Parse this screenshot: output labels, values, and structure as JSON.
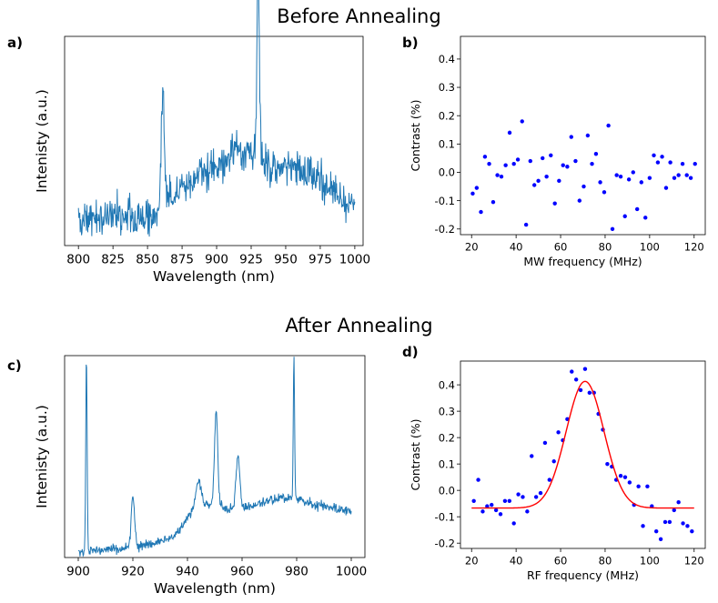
{
  "sections": {
    "top": "Before Annealing",
    "bottom": "After Annealing"
  },
  "panel_letters": {
    "a": "a)",
    "b": "b)",
    "c": "c)",
    "d": "d)"
  },
  "colors": {
    "spectrum": "#1f77b4",
    "points": "#0000ff",
    "fit": "#ff0000"
  },
  "chart_data": [
    {
      "id": "a",
      "type": "line",
      "title": "",
      "xlabel": "Wavelength (nm)",
      "ylabel": "Intenisty (a.u.)",
      "xlim": [
        790,
        1006
      ],
      "ylim": [
        0.0,
        1.0
      ],
      "xticks": [
        800,
        825,
        850,
        875,
        900,
        925,
        950,
        975,
        1000
      ],
      "yticks": [],
      "x_range": [
        800,
        1000
      ],
      "description_points": [
        [
          800,
          0.12
        ],
        [
          830,
          0.15
        ],
        [
          855,
          0.13
        ],
        [
          868,
          0.24
        ],
        [
          878,
          0.27
        ],
        [
          890,
          0.37
        ],
        [
          905,
          0.39
        ],
        [
          915,
          0.45
        ],
        [
          940,
          0.39
        ],
        [
          960,
          0.37
        ],
        [
          985,
          0.27
        ],
        [
          1000,
          0.17
        ]
      ],
      "peaks": [
        [
          861,
          0.54,
          1.2
        ],
        [
          930,
          0.92,
          0.9
        ]
      ]
    },
    {
      "id": "b",
      "type": "scatter",
      "title": "",
      "xlabel": "MW frequency (MHz)",
      "ylabel": "Contrast (%)",
      "xlim": [
        15,
        125
      ],
      "ylim": [
        -0.22,
        0.48
      ],
      "xticks": [
        20,
        40,
        60,
        80,
        100,
        120
      ],
      "yticks": [
        -0.2,
        -0.1,
        0.0,
        0.1,
        0.2,
        0.3,
        0.4
      ],
      "x": [
        20.5,
        22.3,
        24.2,
        26.0,
        27.9,
        29.7,
        31.6,
        33.4,
        35.3,
        37.1,
        39.0,
        40.8,
        42.7,
        44.5,
        46.4,
        48.2,
        50.0,
        51.9,
        53.7,
        55.6,
        57.4,
        59.3,
        61.1,
        63.0,
        64.8,
        66.7,
        68.5,
        70.4,
        72.2,
        74.1,
        75.9,
        77.8,
        79.6,
        81.5,
        83.3,
        85.2,
        87.0,
        88.9,
        90.7,
        92.6,
        94.4,
        96.3,
        98.1,
        100.0,
        101.9,
        103.7,
        105.6,
        107.4,
        109.3,
        111.1,
        113.0,
        114.8,
        116.7,
        118.5,
        120.4
      ],
      "y": [
        -0.075,
        -0.055,
        -0.14,
        0.055,
        0.03,
        -0.105,
        -0.01,
        -0.015,
        0.025,
        0.14,
        0.03,
        0.045,
        0.18,
        -0.185,
        0.04,
        -0.045,
        -0.03,
        0.05,
        -0.015,
        0.06,
        -0.11,
        -0.03,
        0.025,
        0.02,
        0.125,
        0.04,
        -0.1,
        -0.05,
        0.13,
        0.03,
        0.065,
        -0.035,
        -0.07,
        0.165,
        -0.2,
        -0.01,
        -0.015,
        -0.155,
        -0.025,
        0.0,
        -0.13,
        -0.035,
        -0.16,
        -0.02,
        0.06,
        0.035,
        0.055,
        -0.055,
        0.035,
        -0.02,
        -0.01,
        0.03,
        -0.01,
        -0.02,
        0.03
      ]
    },
    {
      "id": "c",
      "type": "line",
      "title": "",
      "xlabel": "Wavelength (nm)",
      "ylabel": "Intenisty (a.u.)",
      "xlim": [
        895,
        1005
      ],
      "ylim": [
        0.0,
        1.0
      ],
      "xticks": [
        900,
        920,
        940,
        960,
        980,
        1000
      ],
      "yticks": [],
      "x_range": [
        900,
        1000
      ],
      "description_points": [
        [
          900,
          0.03
        ],
        [
          912,
          0.04
        ],
        [
          925,
          0.06
        ],
        [
          935,
          0.1
        ],
        [
          940,
          0.2
        ],
        [
          945,
          0.27
        ],
        [
          955,
          0.24
        ],
        [
          965,
          0.26
        ],
        [
          975,
          0.3
        ],
        [
          985,
          0.27
        ],
        [
          1000,
          0.23
        ]
      ],
      "peaks": [
        [
          903,
          0.97,
          0.25
        ],
        [
          920,
          0.25,
          0.6
        ],
        [
          944,
          0.12,
          1.0
        ],
        [
          950.5,
          0.47,
          0.6
        ],
        [
          958.5,
          0.25,
          0.7
        ],
        [
          979,
          0.7,
          0.25
        ]
      ]
    },
    {
      "id": "d",
      "type": "scatter",
      "title": "",
      "xlabel": "RF frequency (MHz)",
      "ylabel": "Contrast (%)",
      "xlim": [
        15,
        125
      ],
      "ylim": [
        -0.22,
        0.49
      ],
      "xticks": [
        20,
        40,
        60,
        80,
        100,
        120
      ],
      "yticks": [
        -0.2,
        -0.1,
        0.0,
        0.1,
        0.2,
        0.3,
        0.4
      ],
      "x": [
        21.0,
        23.0,
        25.0,
        27.0,
        29.0,
        31.0,
        33.0,
        35.0,
        37.0,
        39.0,
        41.0,
        43.0,
        45.0,
        47.0,
        49.0,
        51.0,
        53.0,
        55.0,
        57.0,
        59.0,
        61.0,
        63.0,
        65.0,
        67.0,
        69.0,
        71.0,
        73.0,
        75.0,
        77.0,
        79.0,
        81.0,
        83.0,
        85.0,
        87.0,
        89.0,
        91.0,
        93.0,
        95.0,
        97.0,
        99.0,
        101.0,
        103.0,
        105.0,
        107.0,
        109.0,
        111.0,
        113.0,
        115.0,
        117.0,
        119.0
      ],
      "y": [
        -0.04,
        0.04,
        -0.08,
        -0.06,
        -0.055,
        -0.075,
        -0.09,
        -0.04,
        -0.04,
        -0.125,
        -0.015,
        -0.025,
        -0.08,
        0.13,
        -0.025,
        -0.01,
        0.18,
        0.04,
        0.11,
        0.22,
        0.19,
        0.27,
        0.45,
        0.42,
        0.38,
        0.46,
        0.37,
        0.37,
        0.29,
        0.23,
        0.1,
        0.09,
        0.04,
        0.055,
        0.05,
        0.03,
        -0.055,
        0.015,
        -0.135,
        0.015,
        -0.06,
        -0.155,
        -0.185,
        -0.12,
        -0.12,
        -0.075,
        -0.045,
        -0.125,
        -0.135,
        -0.155
      ],
      "fit": {
        "type": "gaussian",
        "center": 71.0,
        "sigma": 8.5,
        "amplitude": 0.48,
        "offset": -0.067,
        "x_range": [
          20,
          120
        ]
      }
    }
  ]
}
